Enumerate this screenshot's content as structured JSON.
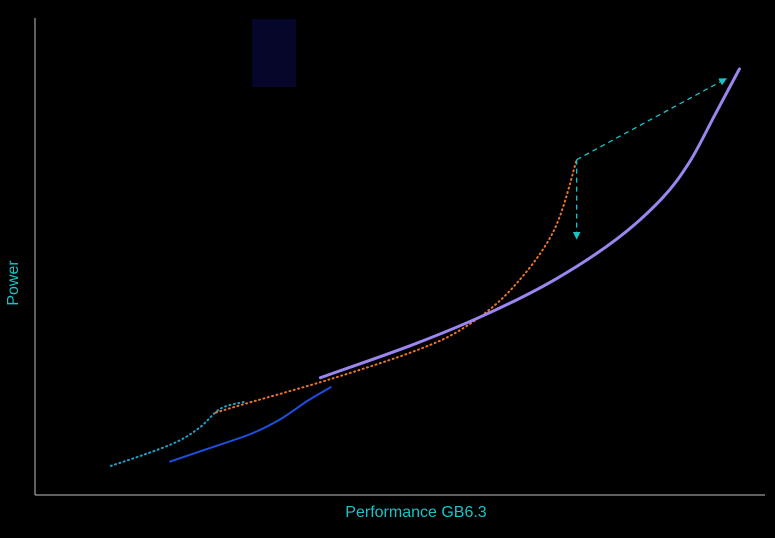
{
  "chart_data": {
    "type": "line",
    "title": "",
    "xlabel": "Performance GB6.3",
    "ylabel": "Power",
    "xlim": [
      0,
      100
    ],
    "ylim": [
      0,
      100
    ],
    "grid": false,
    "legend": "none",
    "colors": {
      "background": "#000000",
      "axis": "#bfbfbf",
      "label": "#19c3c8",
      "highlight_box": "#06062a"
    },
    "series": [
      {
        "style": "dotted",
        "color": "#1fa2c8",
        "x": [
          10.4,
          15,
          19.5,
          22.6,
          25.4,
          28.6
        ],
        "y": [
          6.1,
          8.5,
          11.2,
          14.2,
          18.1,
          19.5
        ]
      },
      {
        "style": "solid",
        "color": "#1c4fe0",
        "x": [
          18.5,
          23.7,
          29.7,
          33.6,
          37.3,
          40.5
        ],
        "y": [
          7,
          9.7,
          12.9,
          15.9,
          19.7,
          22.6
        ]
      },
      {
        "style": "dotted",
        "color": "#e8752a",
        "x": [
          24.8,
          29.2,
          40.7,
          52.2,
          58.8,
          65.1,
          71,
          74.2
        ],
        "y": [
          17.3,
          19.3,
          24.4,
          30.3,
          35.1,
          42.9,
          55.2,
          70.3
        ]
      },
      {
        "style": "solid",
        "color": "#9b86f0",
        "x": [
          39.1,
          51.9,
          62.4,
          71.5,
          79.8,
          85.9,
          89.7,
          93.2,
          96.5
        ],
        "y": [
          24.6,
          31.6,
          38.3,
          45.4,
          53.8,
          62.2,
          69.9,
          79.9,
          89.3
        ]
      }
    ],
    "annotations": [
      {
        "type": "arrow",
        "style": "dashed",
        "color": "#19c3c8",
        "from": [
          74.2,
          70.3
        ],
        "to": [
          74.2,
          53.7
        ]
      },
      {
        "type": "arrow",
        "style": "dashed",
        "color": "#19c3c8",
        "from": [
          74.2,
          70.3
        ],
        "to": [
          94.7,
          87.3
        ]
      }
    ]
  }
}
